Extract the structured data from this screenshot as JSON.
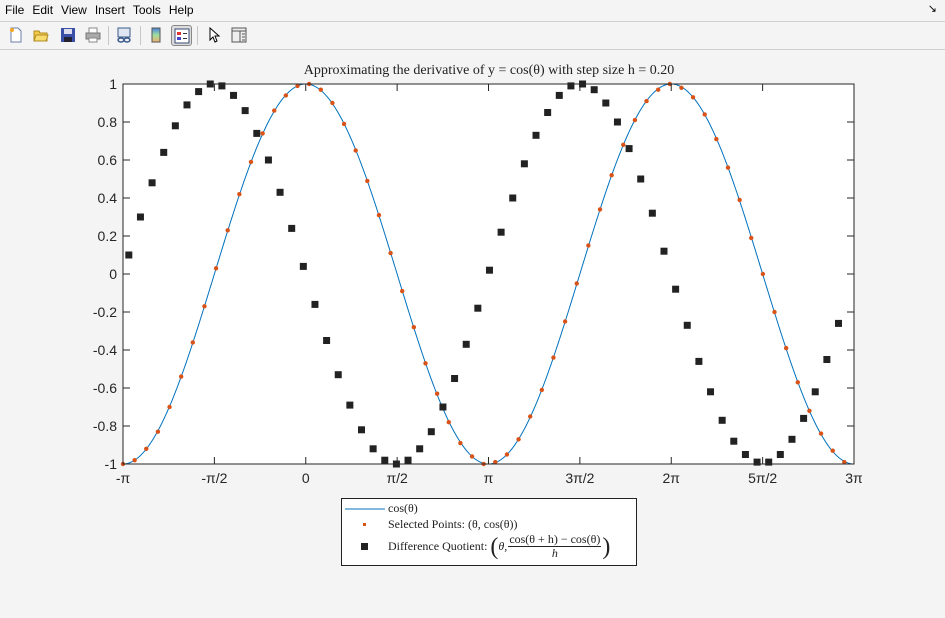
{
  "menu": [
    "File",
    "Edit",
    "View",
    "Insert",
    "Tools",
    "Help"
  ],
  "dock_icon": "dock-arrow-icon",
  "toolbar": [
    {
      "icon": "new-figure-icon"
    },
    {
      "icon": "open-file-icon"
    },
    {
      "icon": "save-icon"
    },
    {
      "icon": "print-icon"
    },
    {
      "icon": "link-plot-icon"
    },
    {
      "icon": "insert-colorbar-icon"
    },
    {
      "icon": "insert-legend-icon",
      "pressed": true
    },
    {
      "icon": "edit-plot-pointer-icon"
    },
    {
      "icon": "property-inspector-icon"
    }
  ],
  "colors": {
    "line": "#0072bd",
    "selected": "#d95319",
    "quotient": "#222222",
    "axes": "#262626"
  },
  "chart_data": {
    "type": "line",
    "title": "Approximating the derivative of y = cos(θ) with step size h = 0.20",
    "xlim": [
      -3.1416,
      9.4248
    ],
    "ylim": [
      -1,
      1
    ],
    "xticks": [
      -3.1416,
      -1.5708,
      0,
      1.5708,
      3.1416,
      4.7124,
      6.2832,
      7.854,
      9.4248
    ],
    "xtick_labels": [
      "-π",
      "-π/2",
      "0",
      "π/2",
      "π",
      "3π/2",
      "2π",
      "5π/2",
      "3π"
    ],
    "yticks": [
      -1,
      -0.8,
      -0.6,
      -0.4,
      -0.2,
      0,
      0.2,
      0.4,
      0.6,
      0.8,
      1
    ],
    "ytick_labels": [
      "-1",
      "-0.8",
      "-0.6",
      "-0.4",
      "-0.2",
      "0",
      "0.2",
      "0.4",
      "0.6",
      "0.8",
      "1"
    ],
    "grid": false,
    "legend_placement": "bottom-outside",
    "series": [
      {
        "name": "cos(θ)",
        "kind": "line",
        "function": "cos"
      },
      {
        "name": "Selected Points: (θ, cos(θ))",
        "kind": "scatter",
        "marker": "dot",
        "x": [
          -3.1416,
          -2.9416,
          -2.7416,
          -2.5416,
          -2.3416,
          -2.1416,
          -1.9416,
          -1.7416,
          -1.5416,
          -1.3416,
          -1.1416,
          -0.9416,
          -0.7416,
          -0.5416,
          -0.3416,
          -0.1416,
          0.0584,
          0.2584,
          0.4584,
          0.6584,
          0.8584,
          1.0584,
          1.2584,
          1.4584,
          1.6584,
          1.8584,
          2.0584,
          2.2584,
          2.4584,
          2.6584,
          2.8584,
          3.0584,
          3.2584,
          3.4584,
          3.6584,
          3.8584,
          4.0584,
          4.2584,
          4.4584,
          4.6584,
          4.8584,
          5.0584,
          5.2584,
          5.4584,
          5.6584,
          5.8584,
          6.0584,
          6.2584,
          6.4584,
          6.6584,
          6.8584,
          7.0584,
          7.2584,
          7.4584,
          7.6584,
          7.8584,
          8.0584,
          8.2584,
          8.4584,
          8.6584,
          8.8584,
          9.0584,
          9.2584
        ],
        "y": [
          -1.0,
          -0.98,
          -0.92,
          -0.83,
          -0.7,
          -0.54,
          -0.36,
          -0.17,
          0.03,
          0.23,
          0.42,
          0.59,
          0.74,
          0.86,
          0.94,
          0.99,
          1.0,
          0.97,
          0.9,
          0.79,
          0.65,
          0.49,
          0.31,
          0.11,
          -0.09,
          -0.28,
          -0.47,
          -0.63,
          -0.78,
          -0.89,
          -0.96,
          -1.0,
          -0.99,
          -0.95,
          -0.87,
          -0.75,
          -0.61,
          -0.44,
          -0.25,
          -0.05,
          0.15,
          0.34,
          0.52,
          0.68,
          0.81,
          0.91,
          0.97,
          1.0,
          0.98,
          0.93,
          0.84,
          0.71,
          0.56,
          0.39,
          0.19,
          0.0,
          -0.2,
          -0.39,
          -0.57,
          -0.72,
          -0.84,
          -0.93,
          -0.99
        ]
      },
      {
        "name": "Difference Quotient",
        "kind": "scatter",
        "marker": "square",
        "x": [
          -3.0416,
          -2.8416,
          -2.6416,
          -2.4416,
          -2.2416,
          -2.0416,
          -1.8416,
          -1.6416,
          -1.4416,
          -1.2416,
          -1.0416,
          -0.8416,
          -0.6416,
          -0.4416,
          -0.2416,
          -0.0416,
          0.1584,
          0.3584,
          0.5584,
          0.7584,
          0.9584,
          1.1584,
          1.3584,
          1.5584,
          1.7584,
          1.9584,
          2.1584,
          2.3584,
          2.5584,
          2.7584,
          2.9584,
          3.1584,
          3.3584,
          3.5584,
          3.7584,
          3.9584,
          4.1584,
          4.3584,
          4.5584,
          4.7584,
          4.9584,
          5.1584,
          5.3584,
          5.5584,
          5.7584,
          5.9584,
          6.1584,
          6.3584,
          6.5584,
          6.7584,
          6.9584,
          7.1584,
          7.3584,
          7.5584,
          7.7584,
          7.9584,
          8.1584,
          8.3584,
          8.5584,
          8.7584,
          8.9584,
          9.1584
        ],
        "y": [
          0.1,
          0.3,
          0.48,
          0.64,
          0.78,
          0.89,
          0.96,
          1.0,
          0.99,
          0.94,
          0.86,
          0.74,
          0.6,
          0.43,
          0.24,
          0.04,
          -0.16,
          -0.35,
          -0.53,
          -0.69,
          -0.82,
          -0.92,
          -0.98,
          -1.0,
          -0.98,
          -0.92,
          -0.83,
          -0.7,
          -0.55,
          -0.37,
          -0.18,
          0.02,
          0.22,
          0.4,
          0.58,
          0.73,
          0.85,
          0.94,
          0.99,
          1.0,
          0.97,
          0.9,
          0.8,
          0.66,
          0.5,
          0.32,
          0.12,
          -0.08,
          -0.27,
          -0.46,
          -0.62,
          -0.77,
          -0.88,
          -0.95,
          -0.99,
          -0.99,
          -0.95,
          -0.87,
          -0.76,
          -0.62,
          -0.45,
          -0.26
        ]
      }
    ]
  },
  "legend": {
    "line_label": "cos(θ)",
    "selected_label": "Selected Points: (θ, cos(θ))",
    "quotient_label": "Difference Quotient:",
    "quotient_arg": "θ,",
    "quotient_numerator": "cos(θ + h) − cos(θ)",
    "quotient_denominator": "h",
    "paren_open": "(",
    "paren_close": ")"
  }
}
